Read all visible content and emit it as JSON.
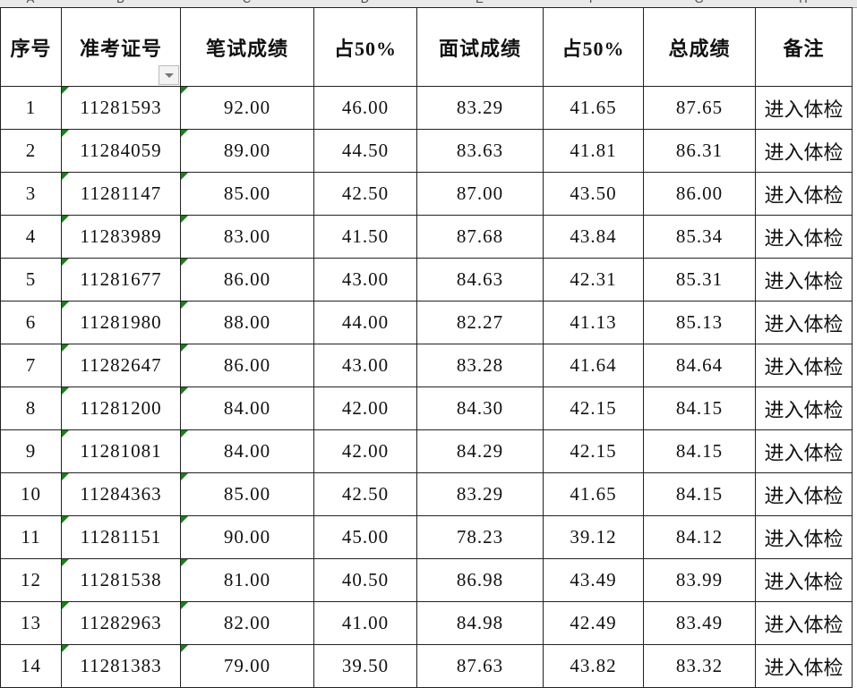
{
  "column_letters": [
    "A",
    "B",
    "C",
    "D",
    "E",
    "F",
    "G",
    "H"
  ],
  "headers": [
    "序号",
    "准考证号",
    "笔试成绩",
    "占50%",
    "面试成绩",
    "占50%",
    "总成绩",
    "备注"
  ],
  "rows": [
    [
      "1",
      "11281593",
      "92.00",
      "46.00",
      "83.29",
      "41.65",
      "87.65",
      "进入体检"
    ],
    [
      "2",
      "11284059",
      "89.00",
      "44.50",
      "83.63",
      "41.81",
      "86.31",
      "进入体检"
    ],
    [
      "3",
      "11281147",
      "85.00",
      "42.50",
      "87.00",
      "43.50",
      "86.00",
      "进入体检"
    ],
    [
      "4",
      "11283989",
      "83.00",
      "41.50",
      "87.68",
      "43.84",
      "85.34",
      "进入体检"
    ],
    [
      "5",
      "11281677",
      "86.00",
      "43.00",
      "84.63",
      "42.31",
      "85.31",
      "进入体检"
    ],
    [
      "6",
      "11281980",
      "88.00",
      "44.00",
      "82.27",
      "41.13",
      "85.13",
      "进入体检"
    ],
    [
      "7",
      "11282647",
      "86.00",
      "43.00",
      "83.28",
      "41.64",
      "84.64",
      "进入体检"
    ],
    [
      "8",
      "11281200",
      "84.00",
      "42.00",
      "84.30",
      "42.15",
      "84.15",
      "进入体检"
    ],
    [
      "9",
      "11281081",
      "84.00",
      "42.00",
      "84.29",
      "42.15",
      "84.15",
      "进入体检"
    ],
    [
      "10",
      "11284363",
      "85.00",
      "42.50",
      "83.29",
      "41.65",
      "84.15",
      "进入体检"
    ],
    [
      "11",
      "11281151",
      "90.00",
      "45.00",
      "78.23",
      "39.12",
      "84.12",
      "进入体检"
    ],
    [
      "12",
      "11281538",
      "81.00",
      "40.50",
      "86.98",
      "43.49",
      "83.99",
      "进入体检"
    ],
    [
      "13",
      "11282963",
      "82.00",
      "41.00",
      "84.98",
      "42.49",
      "83.49",
      "进入体检"
    ],
    [
      "14",
      "11281383",
      "79.00",
      "39.50",
      "87.63",
      "43.82",
      "83.32",
      "进入体检"
    ]
  ],
  "colors": {
    "error_flag": "#1a7f1a",
    "grid": "#222222"
  }
}
